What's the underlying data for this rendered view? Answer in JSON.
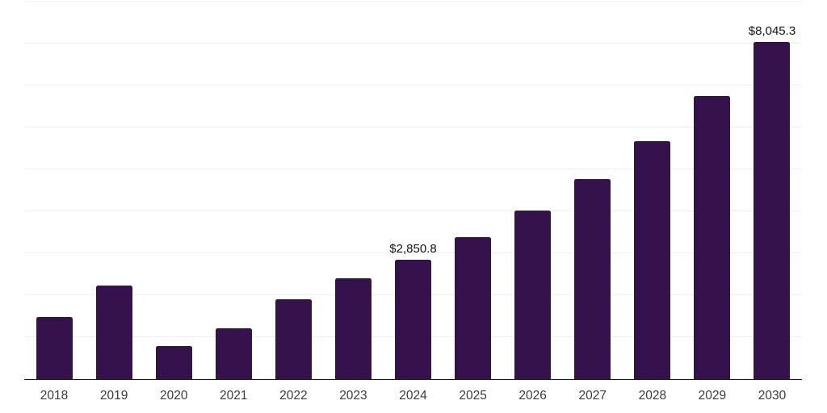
{
  "chart_data": {
    "type": "bar",
    "title": "",
    "xlabel": "",
    "ylabel": "",
    "categories": [
      "2018",
      "2019",
      "2020",
      "2021",
      "2022",
      "2023",
      "2024",
      "2025",
      "2026",
      "2027",
      "2028",
      "2029",
      "2030"
    ],
    "values": [
      1490,
      2240,
      790,
      1210,
      1900,
      2400,
      2850.8,
      3380,
      4020,
      4770,
      5675,
      6750,
      8045.3
    ],
    "data_labels": [
      "",
      "",
      "",
      "",
      "",
      "",
      "$2,850.8",
      "",
      "",
      "",
      "",
      "",
      "$8,045.3"
    ],
    "ylim": [
      0,
      9000
    ],
    "gridline_interval": 1000,
    "grid": "horizontal",
    "y_tick_labels_visible": false,
    "legend_position": "none",
    "colors": {
      "bar": "#36124C",
      "gridline": "#f0f0f0",
      "axis_line": "#1a1a1a",
      "value_label_text": "#121212",
      "x_tick_label_text": "#3b3b3b",
      "background": "#ffffff"
    }
  }
}
